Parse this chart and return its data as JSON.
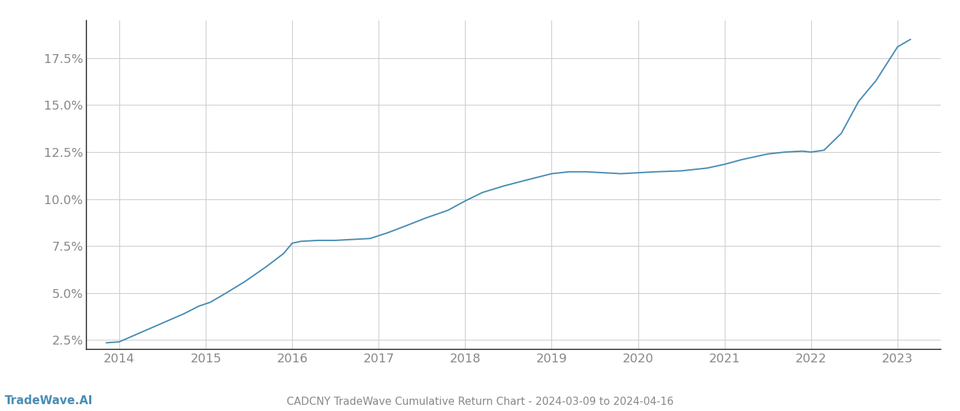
{
  "title": "CADCNY TradeWave Cumulative Return Chart - 2024-03-09 to 2024-04-16",
  "watermark": "TradeWave.AI",
  "line_color": "#4a8db5",
  "background_color": "#ffffff",
  "grid_color": "#cccccc",
  "x_years": [
    2014,
    2015,
    2016,
    2017,
    2018,
    2019,
    2020,
    2021,
    2022,
    2023
  ],
  "data_x": [
    2013.85,
    2014.0,
    2014.15,
    2014.35,
    2014.55,
    2014.75,
    2014.92,
    2015.05,
    2015.2,
    2015.45,
    2015.7,
    2015.9,
    2016.0,
    2016.1,
    2016.3,
    2016.5,
    2016.7,
    2016.9,
    2017.1,
    2017.3,
    2017.55,
    2017.8,
    2018.0,
    2018.2,
    2018.45,
    2018.7,
    2019.0,
    2019.2,
    2019.4,
    2019.6,
    2019.8,
    2020.0,
    2020.2,
    2020.5,
    2020.8,
    2021.0,
    2021.2,
    2021.5,
    2021.7,
    2021.9,
    2022.0,
    2022.15,
    2022.35,
    2022.55,
    2022.75,
    2023.0,
    2023.15
  ],
  "data_y": [
    2.35,
    2.4,
    2.7,
    3.1,
    3.5,
    3.9,
    4.3,
    4.5,
    4.9,
    5.6,
    6.4,
    7.1,
    7.65,
    7.75,
    7.8,
    7.8,
    7.85,
    7.9,
    8.2,
    8.55,
    9.0,
    9.4,
    9.9,
    10.35,
    10.7,
    11.0,
    11.35,
    11.45,
    11.45,
    11.4,
    11.35,
    11.4,
    11.45,
    11.5,
    11.65,
    11.85,
    12.1,
    12.4,
    12.5,
    12.55,
    12.5,
    12.6,
    13.5,
    15.2,
    16.3,
    18.1,
    18.5
  ],
  "ylim": [
    2.0,
    19.5
  ],
  "yticks": [
    2.5,
    5.0,
    7.5,
    10.0,
    12.5,
    15.0,
    17.5
  ],
  "xlim": [
    2013.62,
    2023.5
  ],
  "spine_color": "#333333",
  "tick_color": "#888888",
  "title_fontsize": 11,
  "watermark_fontsize": 12,
  "axis_tick_fontsize": 13
}
